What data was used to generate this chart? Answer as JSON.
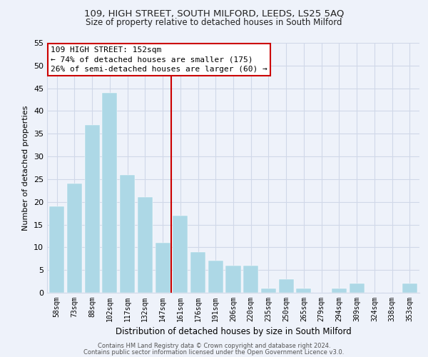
{
  "title": "109, HIGH STREET, SOUTH MILFORD, LEEDS, LS25 5AQ",
  "subtitle": "Size of property relative to detached houses in South Milford",
  "xlabel": "Distribution of detached houses by size in South Milford",
  "ylabel": "Number of detached properties",
  "bar_labels": [
    "58sqm",
    "73sqm",
    "88sqm",
    "102sqm",
    "117sqm",
    "132sqm",
    "147sqm",
    "161sqm",
    "176sqm",
    "191sqm",
    "206sqm",
    "220sqm",
    "235sqm",
    "250sqm",
    "265sqm",
    "279sqm",
    "294sqm",
    "309sqm",
    "324sqm",
    "338sqm",
    "353sqm"
  ],
  "bar_values": [
    19,
    24,
    37,
    44,
    26,
    21,
    11,
    17,
    9,
    7,
    6,
    6,
    1,
    3,
    1,
    0,
    1,
    2,
    0,
    0,
    2
  ],
  "bar_color": "#add8e6",
  "bar_edge_color": "#add8e6",
  "grid_color": "#d0d8e8",
  "background_color": "#eef2fa",
  "vline_x_idx": 7,
  "vline_color": "#cc0000",
  "annotation_title": "109 HIGH STREET: 152sqm",
  "annotation_line1": "← 74% of detached houses are smaller (175)",
  "annotation_line2": "26% of semi-detached houses are larger (60) →",
  "annotation_box_color": "#ffffff",
  "annotation_box_edge": "#cc0000",
  "ylim": [
    0,
    55
  ],
  "yticks": [
    0,
    5,
    10,
    15,
    20,
    25,
    30,
    35,
    40,
    45,
    50,
    55
  ],
  "footnote1": "Contains HM Land Registry data © Crown copyright and database right 2024.",
  "footnote2": "Contains public sector information licensed under the Open Government Licence v3.0."
}
